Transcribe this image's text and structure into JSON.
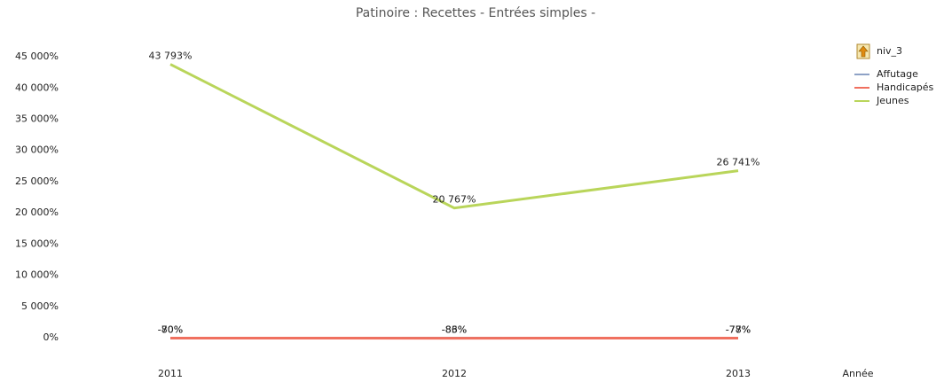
{
  "chart_data": {
    "type": "line",
    "title": "Patinoire : Recettes  - Entrées simples -",
    "x_label": "Année",
    "legend_title": "niv_3",
    "categories": [
      "2011",
      "2012",
      "2013"
    ],
    "series": [
      {
        "name": "Affutage",
        "color": "#8ea2c6",
        "values": [
          -70,
          -83,
          -77
        ],
        "value_labels": [
          "-70%",
          "-83%",
          "-77%"
        ]
      },
      {
        "name": "Handicapés",
        "color": "#f0705f",
        "values": [
          -80,
          -86,
          -78
        ],
        "value_labels": [
          "-80%",
          "-86%",
          "-78%"
        ]
      },
      {
        "name": "Jeunes",
        "color": "#b9d55a",
        "values": [
          43793,
          20767,
          26741
        ],
        "value_labels": [
          "43 793%",
          "20 767%",
          "26 741%"
        ]
      }
    ],
    "ylim": [
      -1000,
      47000
    ],
    "yticks": [
      {
        "value": 0,
        "label": "0%"
      },
      {
        "value": 5000,
        "label": "5 000%"
      },
      {
        "value": 10000,
        "label": "10 000%"
      },
      {
        "value": 15000,
        "label": "15 000%"
      },
      {
        "value": 20000,
        "label": "20 000%"
      },
      {
        "value": 25000,
        "label": "25 000%"
      },
      {
        "value": 30000,
        "label": "30 000%"
      },
      {
        "value": 35000,
        "label": "35 000%"
      },
      {
        "value": 40000,
        "label": "40 000%"
      },
      {
        "value": 45000,
        "label": "45 000%"
      }
    ],
    "legend_position": "top-right"
  }
}
